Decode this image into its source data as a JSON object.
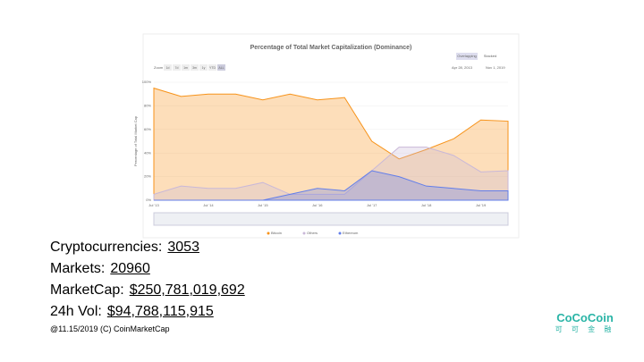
{
  "chart_data": {
    "type": "area",
    "title": "Percentage of Total Market Capitalization (Dominance)",
    "mode_buttons": [
      "Overlapping",
      "Stacked"
    ],
    "zoom_label": "Zoom",
    "zoom_buttons": [
      "1d",
      "7d",
      "1m",
      "3m",
      "1y",
      "YTD",
      "ALL"
    ],
    "date_from": "Apr 28, 2013",
    "date_to": "Nov 1, 2019",
    "y_label": "Percentage of Total Market Cap",
    "categories": [
      "Jul '13",
      null,
      "Jul '14",
      null,
      "Jul '15",
      null,
      "Jul '16",
      null,
      "Jul '17",
      null,
      "Jul '18",
      null,
      "Jul '19",
      null
    ],
    "ylim": [
      0,
      100
    ],
    "yticks": [
      {
        "value": 0,
        "label": "0%"
      },
      {
        "value": 20,
        "label": "20%"
      },
      {
        "value": 40,
        "label": "40%"
      },
      {
        "value": 60,
        "label": "60%"
      },
      {
        "value": 80,
        "label": "80%"
      },
      {
        "value": 100,
        "label": "100%"
      }
    ],
    "series": [
      {
        "name": "Bitcoin",
        "color": "#f7931a",
        "values": [
          95,
          88,
          90,
          90,
          85,
          90,
          85,
          87,
          50,
          35,
          43,
          52,
          68,
          67
        ]
      },
      {
        "name": "Others",
        "color": "#c9b8d8",
        "values": [
          5,
          12,
          10,
          10,
          15,
          5,
          5,
          5,
          25,
          45,
          45,
          38,
          24,
          25
        ]
      },
      {
        "name": "Ethereum",
        "color": "#627eea",
        "values": [
          0,
          0,
          0,
          0,
          0,
          5,
          10,
          8,
          25,
          20,
          12,
          10,
          8,
          8
        ]
      }
    ]
  },
  "stats": [
    {
      "label": "Cryptocurrencies:",
      "value": "3053"
    },
    {
      "label": "Markets:",
      "value": "20960"
    },
    {
      "label": "MarketCap:",
      "value": "$250,781,019,692"
    },
    {
      "label": "24h Vol:",
      "value": "$94,788,115,915"
    }
  ],
  "footer": "@11.15/2019 (C) CoinMarketCap",
  "logo": {
    "brand": "CoCoCoin",
    "chinese": "可 可 金 融"
  }
}
